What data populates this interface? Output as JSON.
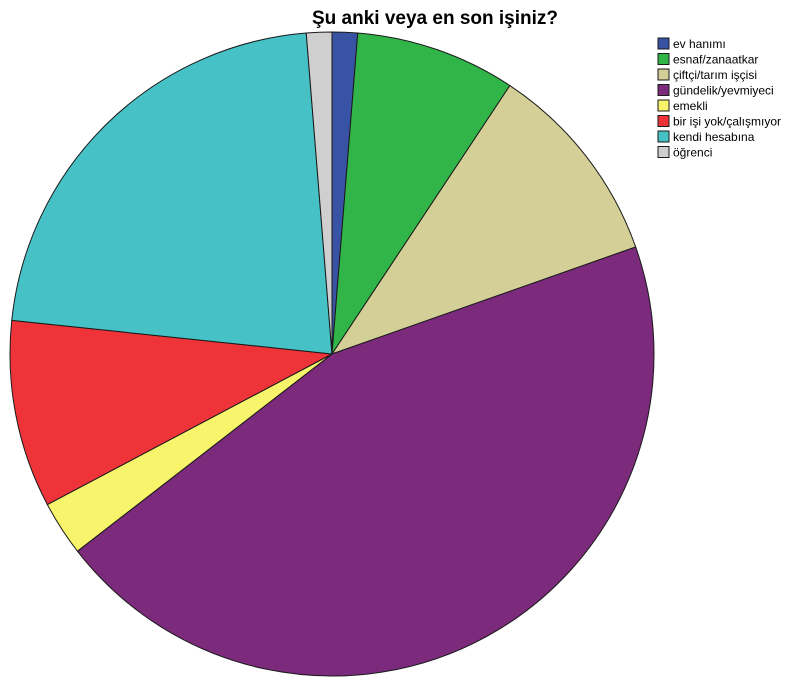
{
  "chart_data": {
    "type": "pie",
    "title": "Şu anki veya en son işiniz?",
    "legend_position": "top-right",
    "start_angle": "12 o'clock, clockwise",
    "categories": [
      "ev hanımı",
      "esnaf/zanaatkar",
      "çiftçi/tarım işçisi",
      "gündelik/yevmiyeci",
      "emekli",
      "bir işi yok/çalışmıyor",
      "kendi hesabına",
      "öğrenci"
    ],
    "values": [
      1.3,
      8.2,
      10.5,
      45.8,
      2.8,
      9.6,
      22.5,
      1.3
    ],
    "unit": "percent (estimated)",
    "colors": [
      "#3953a4",
      "#31b549",
      "#d3cf97",
      "#7b2a7c",
      "#f8f46b",
      "#ee3438",
      "#46c1c5",
      "#cfcfcf"
    ]
  }
}
